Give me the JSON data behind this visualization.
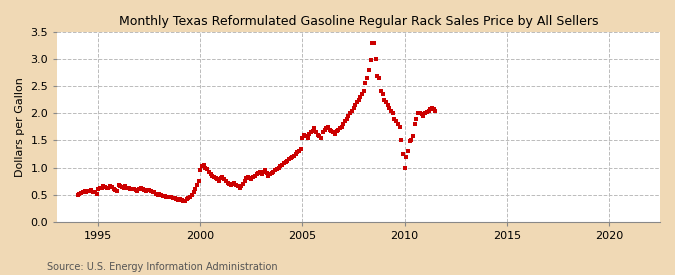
{
  "title": "Monthly Texas Reformulated Gasoline Regular Rack Sales Price by All Sellers",
  "ylabel": "Dollars per Gallon",
  "source": "Source: U.S. Energy Information Administration",
  "bg_color": "#f5deb3",
  "plot_bg_color": "#ffffff",
  "dot_color": "#cc0000",
  "xlim": [
    1993.0,
    2022.5
  ],
  "ylim": [
    0.0,
    3.5
  ],
  "xticks": [
    1995,
    2000,
    2005,
    2010,
    2015,
    2020
  ],
  "yticks": [
    0.0,
    0.5,
    1.0,
    1.5,
    2.0,
    2.5,
    3.0,
    3.5
  ],
  "data": [
    [
      1994.0,
      0.5
    ],
    [
      1994.08,
      0.52
    ],
    [
      1994.17,
      0.53
    ],
    [
      1994.25,
      0.54
    ],
    [
      1994.33,
      0.56
    ],
    [
      1994.42,
      0.55
    ],
    [
      1994.5,
      0.56
    ],
    [
      1994.58,
      0.57
    ],
    [
      1994.67,
      0.58
    ],
    [
      1994.75,
      0.55
    ],
    [
      1994.83,
      0.54
    ],
    [
      1994.92,
      0.52
    ],
    [
      1995.0,
      0.6
    ],
    [
      1995.08,
      0.62
    ],
    [
      1995.17,
      0.63
    ],
    [
      1995.25,
      0.65
    ],
    [
      1995.33,
      0.64
    ],
    [
      1995.42,
      0.62
    ],
    [
      1995.5,
      0.63
    ],
    [
      1995.58,
      0.65
    ],
    [
      1995.67,
      0.64
    ],
    [
      1995.75,
      0.6
    ],
    [
      1995.83,
      0.58
    ],
    [
      1995.92,
      0.56
    ],
    [
      1996.0,
      0.68
    ],
    [
      1996.08,
      0.66
    ],
    [
      1996.17,
      0.64
    ],
    [
      1996.25,
      0.62
    ],
    [
      1996.33,
      0.65
    ],
    [
      1996.42,
      0.63
    ],
    [
      1996.5,
      0.62
    ],
    [
      1996.58,
      0.6
    ],
    [
      1996.67,
      0.61
    ],
    [
      1996.75,
      0.6
    ],
    [
      1996.83,
      0.58
    ],
    [
      1996.92,
      0.57
    ],
    [
      1997.0,
      0.6
    ],
    [
      1997.08,
      0.62
    ],
    [
      1997.17,
      0.6
    ],
    [
      1997.25,
      0.58
    ],
    [
      1997.33,
      0.57
    ],
    [
      1997.42,
      0.58
    ],
    [
      1997.5,
      0.58
    ],
    [
      1997.58,
      0.56
    ],
    [
      1997.67,
      0.55
    ],
    [
      1997.75,
      0.54
    ],
    [
      1997.83,
      0.52
    ],
    [
      1997.92,
      0.5
    ],
    [
      1998.0,
      0.52
    ],
    [
      1998.08,
      0.5
    ],
    [
      1998.17,
      0.48
    ],
    [
      1998.25,
      0.47
    ],
    [
      1998.33,
      0.46
    ],
    [
      1998.42,
      0.45
    ],
    [
      1998.5,
      0.46
    ],
    [
      1998.58,
      0.45
    ],
    [
      1998.67,
      0.44
    ],
    [
      1998.75,
      0.43
    ],
    [
      1998.83,
      0.42
    ],
    [
      1998.92,
      0.4
    ],
    [
      1999.0,
      0.42
    ],
    [
      1999.08,
      0.4
    ],
    [
      1999.17,
      0.38
    ],
    [
      1999.25,
      0.39
    ],
    [
      1999.33,
      0.41
    ],
    [
      1999.42,
      0.43
    ],
    [
      1999.5,
      0.45
    ],
    [
      1999.58,
      0.5
    ],
    [
      1999.67,
      0.55
    ],
    [
      1999.75,
      0.6
    ],
    [
      1999.83,
      0.68
    ],
    [
      1999.92,
      0.75
    ],
    [
      2000.0,
      0.95
    ],
    [
      2000.08,
      1.02
    ],
    [
      2000.17,
      1.05
    ],
    [
      2000.25,
      1.0
    ],
    [
      2000.33,
      0.98
    ],
    [
      2000.42,
      0.92
    ],
    [
      2000.5,
      0.88
    ],
    [
      2000.58,
      0.85
    ],
    [
      2000.67,
      0.82
    ],
    [
      2000.75,
      0.8
    ],
    [
      2000.83,
      0.78
    ],
    [
      2000.92,
      0.76
    ],
    [
      2001.0,
      0.8
    ],
    [
      2001.08,
      0.82
    ],
    [
      2001.17,
      0.78
    ],
    [
      2001.25,
      0.75
    ],
    [
      2001.33,
      0.72
    ],
    [
      2001.42,
      0.7
    ],
    [
      2001.5,
      0.68
    ],
    [
      2001.58,
      0.7
    ],
    [
      2001.67,
      0.72
    ],
    [
      2001.75,
      0.68
    ],
    [
      2001.83,
      0.65
    ],
    [
      2001.92,
      0.62
    ],
    [
      2002.0,
      0.65
    ],
    [
      2002.08,
      0.7
    ],
    [
      2002.17,
      0.75
    ],
    [
      2002.25,
      0.8
    ],
    [
      2002.33,
      0.82
    ],
    [
      2002.42,
      0.8
    ],
    [
      2002.5,
      0.78
    ],
    [
      2002.58,
      0.82
    ],
    [
      2002.67,
      0.85
    ],
    [
      2002.75,
      0.88
    ],
    [
      2002.83,
      0.9
    ],
    [
      2002.92,
      0.92
    ],
    [
      2003.0,
      0.88
    ],
    [
      2003.08,
      0.92
    ],
    [
      2003.17,
      0.95
    ],
    [
      2003.25,
      0.9
    ],
    [
      2003.33,
      0.85
    ],
    [
      2003.42,
      0.88
    ],
    [
      2003.5,
      0.9
    ],
    [
      2003.58,
      0.92
    ],
    [
      2003.67,
      0.95
    ],
    [
      2003.75,
      0.98
    ],
    [
      2003.83,
      1.0
    ],
    [
      2003.92,
      1.02
    ],
    [
      2004.0,
      1.05
    ],
    [
      2004.08,
      1.08
    ],
    [
      2004.17,
      1.1
    ],
    [
      2004.25,
      1.12
    ],
    [
      2004.33,
      1.15
    ],
    [
      2004.42,
      1.18
    ],
    [
      2004.5,
      1.2
    ],
    [
      2004.58,
      1.22
    ],
    [
      2004.67,
      1.25
    ],
    [
      2004.75,
      1.28
    ],
    [
      2004.83,
      1.3
    ],
    [
      2004.92,
      1.35
    ],
    [
      2005.0,
      1.55
    ],
    [
      2005.08,
      1.6
    ],
    [
      2005.17,
      1.58
    ],
    [
      2005.25,
      1.55
    ],
    [
      2005.33,
      1.62
    ],
    [
      2005.42,
      1.65
    ],
    [
      2005.5,
      1.68
    ],
    [
      2005.58,
      1.72
    ],
    [
      2005.67,
      1.65
    ],
    [
      2005.75,
      1.6
    ],
    [
      2005.83,
      1.58
    ],
    [
      2005.92,
      1.55
    ],
    [
      2006.0,
      1.65
    ],
    [
      2006.08,
      1.7
    ],
    [
      2006.17,
      1.72
    ],
    [
      2006.25,
      1.75
    ],
    [
      2006.33,
      1.7
    ],
    [
      2006.42,
      1.68
    ],
    [
      2006.5,
      1.65
    ],
    [
      2006.58,
      1.62
    ],
    [
      2006.67,
      1.68
    ],
    [
      2006.75,
      1.7
    ],
    [
      2006.83,
      1.72
    ],
    [
      2006.92,
      1.75
    ],
    [
      2007.0,
      1.8
    ],
    [
      2007.08,
      1.85
    ],
    [
      2007.17,
      1.9
    ],
    [
      2007.25,
      1.95
    ],
    [
      2007.33,
      2.0
    ],
    [
      2007.42,
      2.05
    ],
    [
      2007.5,
      2.1
    ],
    [
      2007.58,
      2.15
    ],
    [
      2007.67,
      2.2
    ],
    [
      2007.75,
      2.25
    ],
    [
      2007.83,
      2.3
    ],
    [
      2007.92,
      2.35
    ],
    [
      2008.0,
      2.42
    ],
    [
      2008.08,
      2.55
    ],
    [
      2008.17,
      2.65
    ],
    [
      2008.25,
      2.8
    ],
    [
      2008.33,
      2.98
    ],
    [
      2008.42,
      3.3
    ],
    [
      2008.5,
      3.3
    ],
    [
      2008.58,
      3.0
    ],
    [
      2008.67,
      2.68
    ],
    [
      2008.75,
      2.65
    ],
    [
      2008.83,
      2.42
    ],
    [
      2008.92,
      2.35
    ],
    [
      2009.0,
      2.25
    ],
    [
      2009.08,
      2.2
    ],
    [
      2009.17,
      2.15
    ],
    [
      2009.25,
      2.1
    ],
    [
      2009.33,
      2.05
    ],
    [
      2009.42,
      2.0
    ],
    [
      2009.5,
      1.9
    ],
    [
      2009.58,
      1.85
    ],
    [
      2009.67,
      1.8
    ],
    [
      2009.75,
      1.75
    ],
    [
      2009.83,
      1.5
    ],
    [
      2009.92,
      1.25
    ],
    [
      2010.0,
      1.0
    ],
    [
      2010.08,
      1.2
    ],
    [
      2010.17,
      1.3
    ],
    [
      2010.25,
      1.48
    ],
    [
      2010.33,
      1.5
    ],
    [
      2010.42,
      1.58
    ],
    [
      2010.5,
      1.8
    ],
    [
      2010.58,
      1.9
    ],
    [
      2010.67,
      2.0
    ],
    [
      2010.75,
      2.0
    ],
    [
      2010.83,
      1.98
    ],
    [
      2010.92,
      1.95
    ],
    [
      2011.0,
      2.0
    ],
    [
      2011.08,
      2.02
    ],
    [
      2011.17,
      2.05
    ],
    [
      2011.25,
      2.08
    ],
    [
      2011.33,
      2.1
    ],
    [
      2011.42,
      2.08
    ],
    [
      2011.5,
      2.05
    ]
  ]
}
